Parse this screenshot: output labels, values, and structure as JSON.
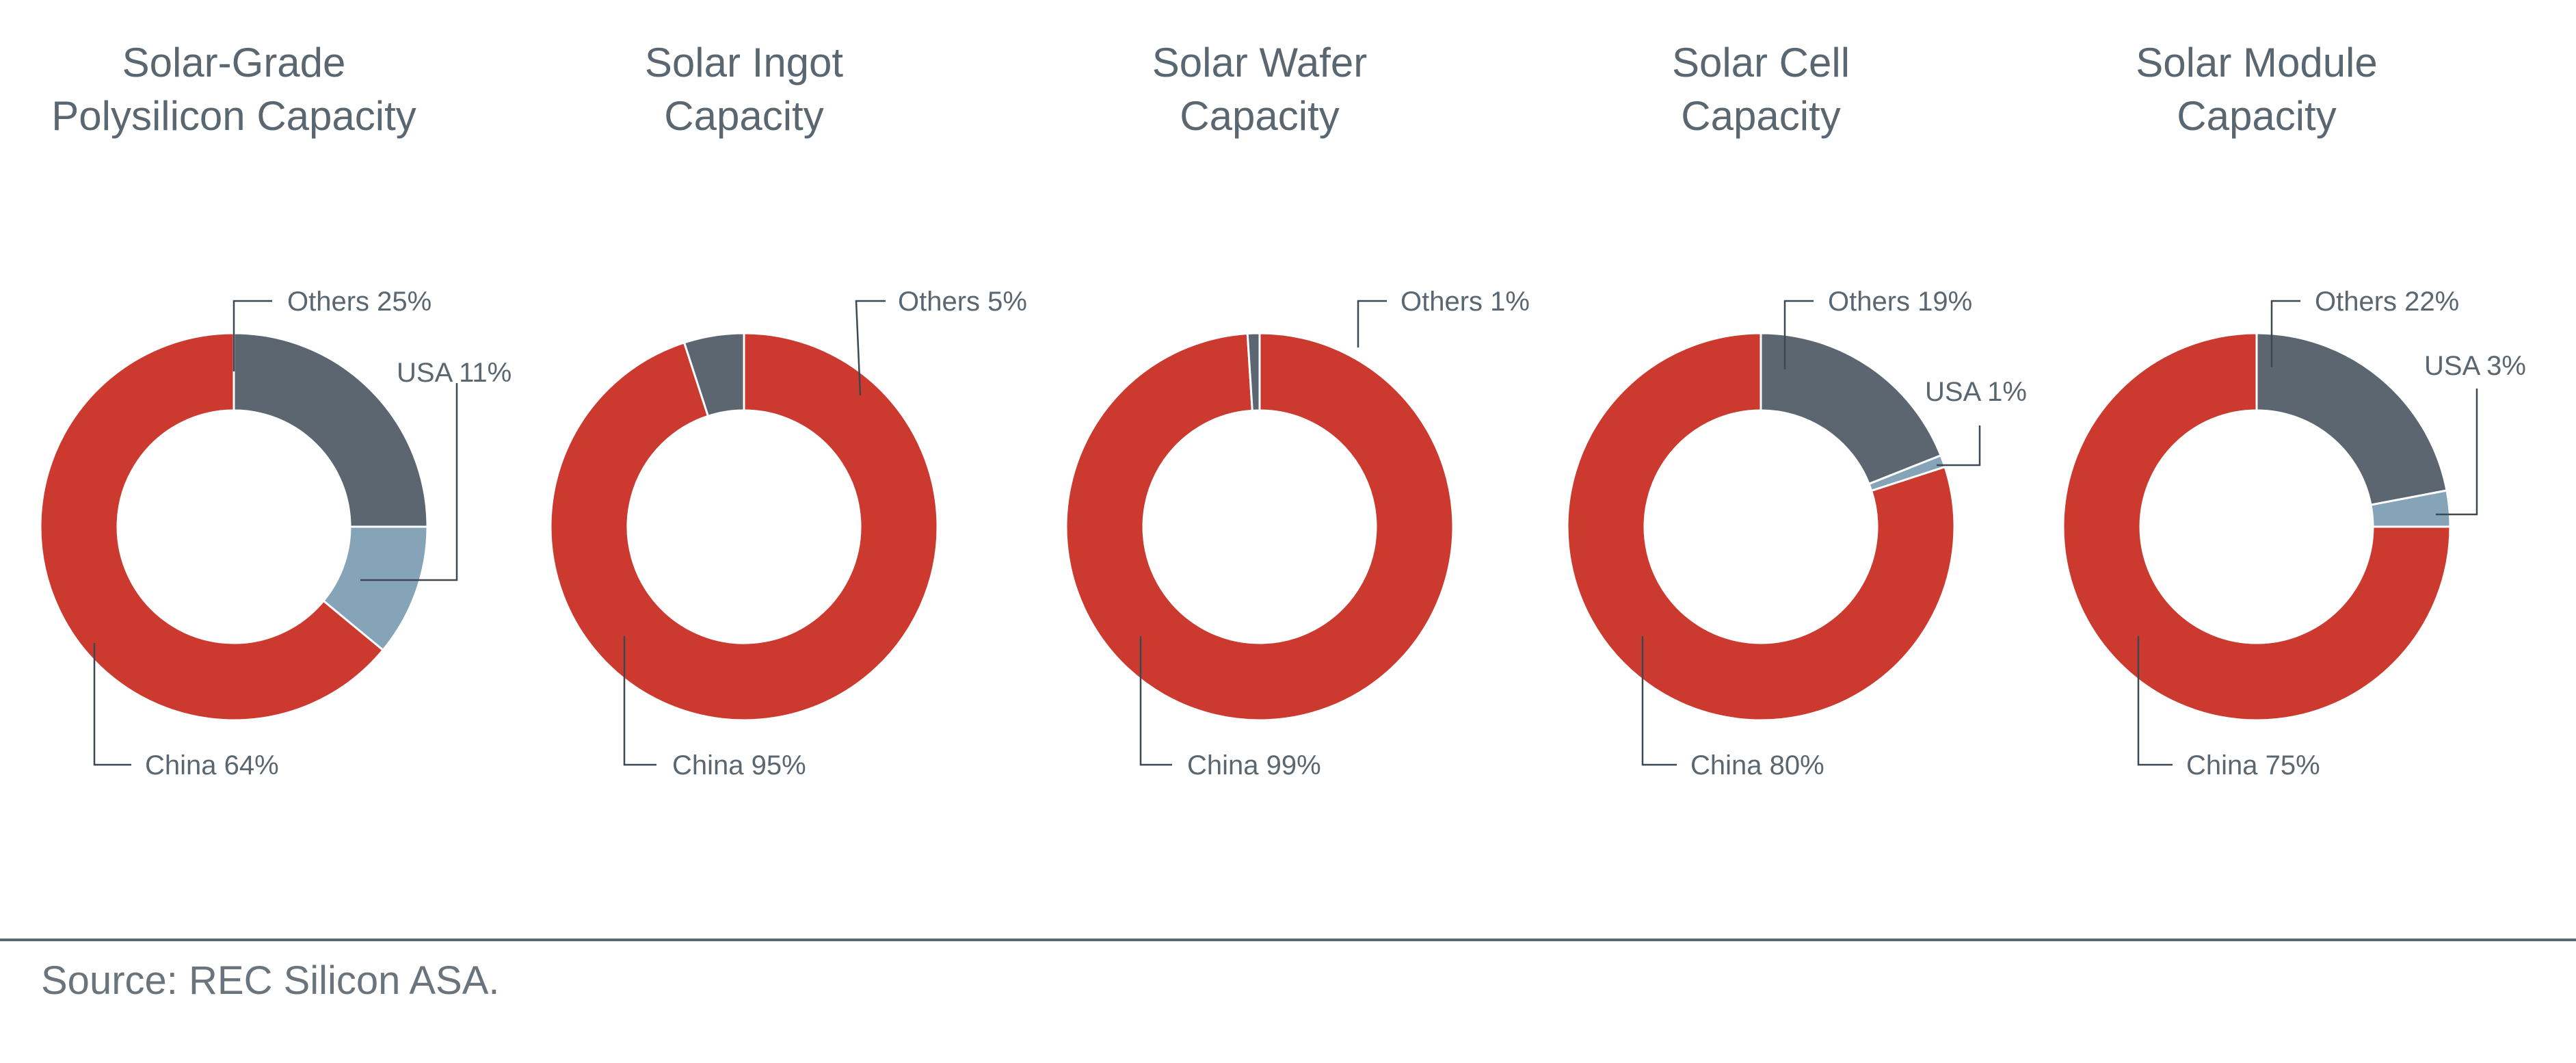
{
  "source": "Source: REC Silicon ASA.",
  "colors": {
    "China": "#cc3a2f",
    "Others": "#5c6670",
    "USA": "#86a4b8"
  },
  "chart_data": [
    {
      "type": "pie",
      "title": [
        "Solar-Grade",
        "Polysilicon Capacity"
      ],
      "slices": [
        {
          "name": "Others",
          "value": 25,
          "label": "Others 25%"
        },
        {
          "name": "USA",
          "value": 11,
          "label": "USA 11%"
        },
        {
          "name": "China",
          "value": 64,
          "label": "China 64%"
        }
      ]
    },
    {
      "type": "pie",
      "title": [
        "Solar Ingot",
        "Capacity"
      ],
      "slices": [
        {
          "name": "China",
          "value": 95,
          "label": "China 95%"
        },
        {
          "name": "Others",
          "value": 5,
          "label": "Others 5%"
        }
      ]
    },
    {
      "type": "pie",
      "title": [
        "Solar Wafer",
        "Capacity"
      ],
      "slices": [
        {
          "name": "China",
          "value": 99,
          "label": "China 99%"
        },
        {
          "name": "Others",
          "value": 1,
          "label": "Others 1%"
        }
      ]
    },
    {
      "type": "pie",
      "title": [
        "Solar Cell",
        "Capacity"
      ],
      "slices": [
        {
          "name": "Others",
          "value": 19,
          "label": "Others 19%"
        },
        {
          "name": "USA",
          "value": 1,
          "label": "USA 1%"
        },
        {
          "name": "China",
          "value": 80,
          "label": "China 80%"
        }
      ]
    },
    {
      "type": "pie",
      "title": [
        "Solar Module",
        "Capacity"
      ],
      "slices": [
        {
          "name": "Others",
          "value": 22,
          "label": "Others 22%"
        },
        {
          "name": "USA",
          "value": 3,
          "label": "USA 3%"
        },
        {
          "name": "China",
          "value": 75,
          "label": "China 75%"
        }
      ]
    }
  ]
}
